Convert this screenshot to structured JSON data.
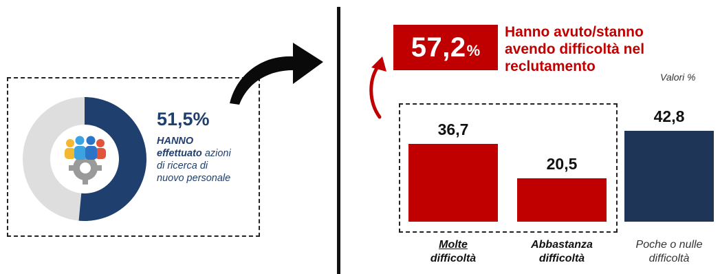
{
  "left_panel": {
    "percent": "51,5%",
    "desc_bold_1": "HANNO",
    "desc_bold_2": "effettuato",
    "desc_rest_1": " azioni",
    "desc_rest_2": "di ricerca di",
    "desc_rest_3": "nuovo personale",
    "donut": {
      "value": 51.5,
      "fill_color": "#1f3f6e",
      "rest_color": "#dedede"
    },
    "icon": "team-gear-icon"
  },
  "headline": {
    "value": "57,2",
    "suffix": "%",
    "text_line_1": "Hanno avuto/stanno",
    "text_line_2": "avendo difficoltà nel",
    "text_line_3": "reclutamento",
    "color": "#c00000"
  },
  "units_note": "Valori %",
  "chart_data": {
    "type": "bar",
    "categories": [
      "Molte difficoltà",
      "Abbastanza difficoltà",
      "Poche o nulle difficoltà"
    ],
    "category_lines": [
      [
        "Molte",
        "difficoltà"
      ],
      [
        "Abbastanza",
        "difficoltà"
      ],
      [
        "Poche o nulle",
        "difficoltà"
      ]
    ],
    "values": [
      36.7,
      20.5,
      42.8
    ],
    "value_labels": [
      "36,7",
      "20,5",
      "42,8"
    ],
    "colors": [
      "#c00000",
      "#c00000",
      "#1f3558"
    ],
    "ylim": [
      0,
      55
    ],
    "grid": false,
    "legend": "none"
  }
}
